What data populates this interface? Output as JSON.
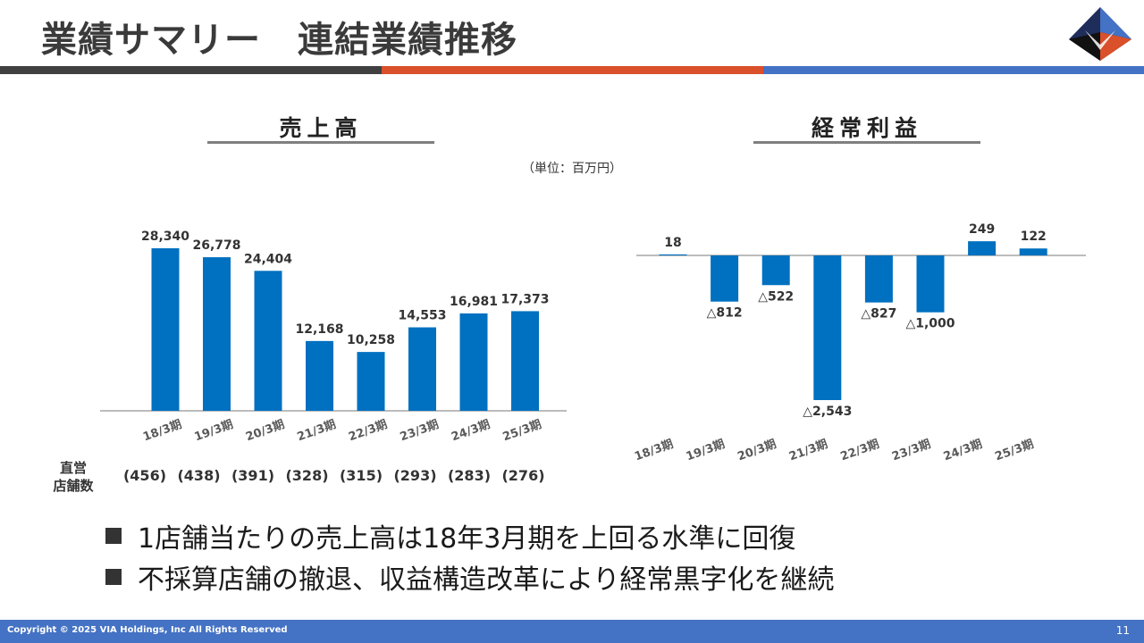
{
  "header": {
    "title": "業績サマリー　連結業績推移",
    "logo_icon": "via-holdings-logo-icon",
    "stripe_colors": [
      "#404040",
      "#d9502a",
      "#4472c4"
    ]
  },
  "sales": {
    "heading": "売上高",
    "stores_label_line1": "直営",
    "stores_label_line2": "店舗数",
    "store_counts": [
      "(456)",
      "(438)",
      "(391)",
      "(328)",
      "(315)",
      "(293)",
      "(283)",
      "(276)"
    ]
  },
  "profit": {
    "heading": "経常利益"
  },
  "unit_note": "（単位：百万円）",
  "chart_data": [
    {
      "type": "bar",
      "title": "売上高",
      "categories": [
        "18/3期",
        "19/3期",
        "20/3期",
        "21/3期",
        "22/3期",
        "23/3期",
        "24/3期",
        "25/3期"
      ],
      "values": [
        28340,
        26778,
        24404,
        12168,
        10258,
        14553,
        16981,
        17373
      ],
      "value_labels": [
        "28,340",
        "26,778",
        "24,404",
        "12,168",
        "10,258",
        "14,553",
        "16,981",
        "17,373"
      ],
      "ylim": [
        0,
        30000
      ],
      "color": "#0070c0",
      "grid": false,
      "legend": "none"
    },
    {
      "type": "bar",
      "title": "経常利益",
      "categories": [
        "18/3期",
        "19/3期",
        "20/3期",
        "21/3期",
        "22/3期",
        "23/3期",
        "24/3期",
        "25/3期"
      ],
      "values": [
        18,
        -812,
        -522,
        -2543,
        -827,
        -1000,
        249,
        122
      ],
      "value_labels": [
        "18",
        "△812",
        "△522",
        "△2,543",
        "△827",
        "△1,000",
        "249",
        "122"
      ],
      "ylim": [
        -2543,
        249
      ],
      "color": "#0070c0",
      "grid": false,
      "legend": "none"
    }
  ],
  "bullets": [
    "1店舗当たりの売上高は18年3月期を上回る水準に回復",
    "不採算店舗の撤退、収益構造改革により経常黒字化を継続"
  ],
  "footer": {
    "copyright": "Copyright © 2025 VIA Holdings, Inc All Rights Reserved",
    "page_number": "11"
  }
}
